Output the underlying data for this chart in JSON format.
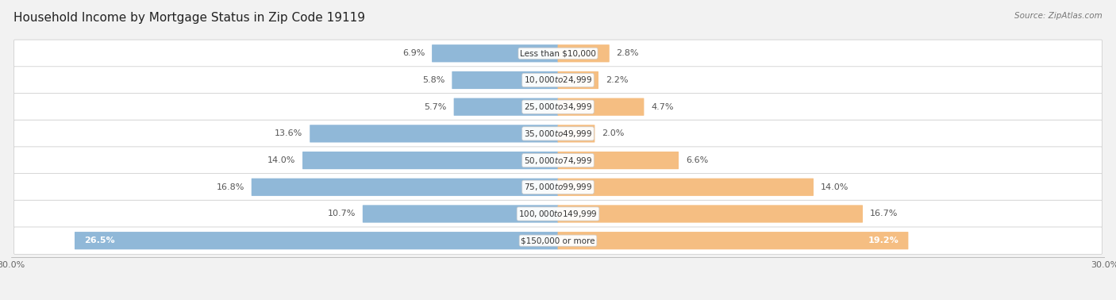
{
  "title": "Household Income by Mortgage Status in Zip Code 19119",
  "source": "Source: ZipAtlas.com",
  "categories": [
    "Less than $10,000",
    "$10,000 to $24,999",
    "$25,000 to $34,999",
    "$35,000 to $49,999",
    "$50,000 to $74,999",
    "$75,000 to $99,999",
    "$100,000 to $149,999",
    "$150,000 or more"
  ],
  "without_mortgage": [
    6.9,
    5.8,
    5.7,
    13.6,
    14.0,
    16.8,
    10.7,
    26.5
  ],
  "with_mortgage": [
    2.8,
    2.2,
    4.7,
    2.0,
    6.6,
    14.0,
    16.7,
    19.2
  ],
  "without_mortgage_color": "#90b8d8",
  "with_mortgage_color": "#f5be82",
  "bg_color": "#f2f2f2",
  "row_bg_light": "#f8f8f8",
  "row_bg_dark": "#ececec",
  "xlim": 30.0,
  "title_fontsize": 11,
  "label_fontsize": 8,
  "category_fontsize": 7.5,
  "axis_label_fontsize": 8,
  "legend_fontsize": 8.5
}
